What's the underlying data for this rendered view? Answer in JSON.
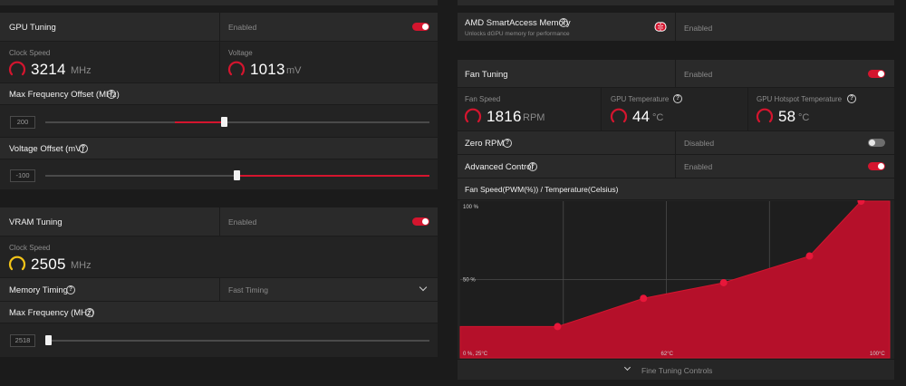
{
  "gpu_tuning": {
    "title": "GPU Tuning",
    "status": "Enabled",
    "enabled": true,
    "clock_speed": {
      "label": "Clock Speed",
      "value": "3214",
      "unit": "MHz"
    },
    "voltage": {
      "label": "Voltage",
      "value": "1013",
      "unit": "mV"
    },
    "max_freq_offset": {
      "label": "Max Frequency Offset (MHz)",
      "value": "200",
      "slider_fraction": 0.5
    },
    "voltage_offset": {
      "label": "Voltage Offset (mV)",
      "value": "-100",
      "slider_fraction": 0.5
    }
  },
  "vram_tuning": {
    "title": "VRAM Tuning",
    "status": "Enabled",
    "enabled": true,
    "clock_speed": {
      "label": "Clock Speed",
      "value": "2505",
      "unit": "MHz"
    },
    "memory_timing": {
      "label": "Memory Timing",
      "value": "Fast Timing"
    },
    "max_frequency": {
      "label": "Max Frequency (MHz)",
      "value": "2518",
      "slider_fraction": 0.0
    }
  },
  "smart_access": {
    "title": "AMD SmartAccess Memory",
    "subtitle": "Unlocks dGPU memory for performance",
    "status": "Enabled"
  },
  "fan_tuning": {
    "title": "Fan Tuning",
    "status": "Enabled",
    "enabled": true,
    "fan_speed": {
      "label": "Fan Speed",
      "value": "1816",
      "unit": "RPM"
    },
    "gpu_temperature": {
      "label": "GPU Temperature",
      "value": "44",
      "unit": "°C"
    },
    "hotspot_temperature": {
      "label": "GPU Hotspot Temperature",
      "value": "58",
      "unit": "°C"
    },
    "zero_rpm": {
      "label": "Zero RPM",
      "status": "Disabled",
      "enabled": false
    },
    "advanced_control": {
      "label": "Advanced Control",
      "status": "Enabled",
      "enabled": true
    },
    "curve_title": "Fan Speed(PWM(%)) / Temperature(Celsius)",
    "fine_tuning_label": "Fine Tuning Controls"
  },
  "colors": {
    "accent": "#d4152e",
    "gauge_yellow": "#f5c518",
    "curve_fill": "#b5102a"
  },
  "chart_data": {
    "type": "area",
    "ylabel_top": "100 %",
    "ylabel_mid": "50 %",
    "origin_label": "0 %, 25°C",
    "x_mid_label": "62°C",
    "x_max_label": "100°C",
    "x": [
      25,
      42,
      57,
      71,
      86,
      95,
      100
    ],
    "y": [
      20,
      20,
      38,
      48,
      65,
      100,
      100
    ],
    "points": [
      {
        "temp": 42,
        "pwm": 20
      },
      {
        "temp": 57,
        "pwm": 38
      },
      {
        "temp": 71,
        "pwm": 48
      },
      {
        "temp": 86,
        "pwm": 65
      },
      {
        "temp": 95,
        "pwm": 100
      }
    ],
    "xlim": [
      25,
      100
    ],
    "ylim": [
      0,
      100
    ],
    "grid": true
  }
}
